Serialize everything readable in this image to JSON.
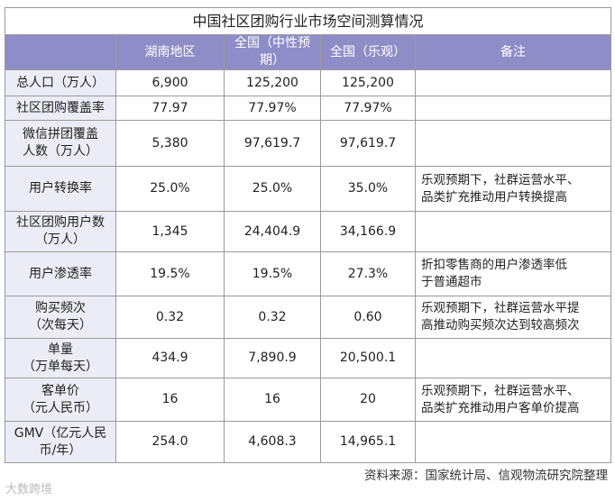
{
  "table": {
    "title": "中国社区团购行业市场空间测算情况",
    "header": [
      "",
      "湖南地区",
      "全国（中性预期）",
      "全国（乐观）",
      "备注"
    ],
    "rows": [
      {
        "label": [
          "总人口（万人）"
        ],
        "values": [
          "6,900",
          "125,200",
          "125,200"
        ]
      },
      {
        "label": [
          "社区团购覆盖率"
        ],
        "values": [
          "77.97",
          "77.97%",
          "77.97%"
        ]
      },
      {
        "label": [
          "微信拼团覆盖",
          "人数（万人）"
        ],
        "values": [
          "5,380",
          "97,619.7",
          "97,619.7"
        ]
      },
      {
        "label": [
          "用户转换率"
        ],
        "values": [
          "25.0%",
          "25.0%",
          "35.0%"
        ],
        "note": [
          "乐观预期下，社群运营水平、",
          "品类扩充推动用户转换提高"
        ]
      },
      {
        "label": [
          "社区团购用户数",
          "（万人）"
        ],
        "values": [
          "1,345",
          "24,404.9",
          "34,166.9"
        ]
      },
      {
        "label": [
          "用户渗透率"
        ],
        "values": [
          "19.5%",
          "19.5%",
          "27.3%"
        ],
        "note": [
          "折扣零售商的用户渗透率低",
          "于普通超市"
        ]
      },
      {
        "label": [
          "购买频次",
          "（次每天）"
        ],
        "values": [
          "0.32",
          "0.32",
          "0.60"
        ],
        "note": [
          "乐观预期下，社群运营水平提",
          "高推动购买频次达到较高频次"
        ]
      },
      {
        "label": [
          "单量",
          "（万单每天）"
        ],
        "values": [
          "434.9",
          "7,890.9",
          "20,500.1"
        ]
      },
      {
        "label": [
          "客单价",
          "（元人民币）"
        ],
        "values": [
          "16",
          "16",
          "20"
        ],
        "note": [
          "乐观预期下，社群运营水平、",
          "品类扩充推动用户客单价提高"
        ]
      },
      {
        "label": [
          "GMV（亿元人民",
          "币/年）"
        ],
        "values": [
          "254.0",
          "4,608.3",
          "14,965.1"
        ]
      }
    ],
    "source": "资料来源：国家统计局、信观物流研究院整理",
    "watermark": "大数跨境"
  }
}
